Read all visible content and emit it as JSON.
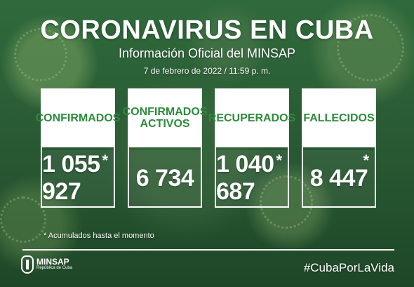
{
  "header": {
    "title": "CORONAVIRUS EN CUBA",
    "subtitle": "Información Oficial del MINSAP",
    "date": "7 de febrero de 2022 / 11:59 p. m."
  },
  "cards": [
    {
      "label": "CONFIRMADOS",
      "value": "1 055 927",
      "asterisk": "*"
    },
    {
      "label": "CONFIRMADOS ACTIVOS",
      "value": "6 734",
      "asterisk": ""
    },
    {
      "label": "RECUPERADOS",
      "value": "1 040 687",
      "asterisk": "*"
    },
    {
      "label": "FALLECIDOS",
      "value": "8 447",
      "asterisk": "*"
    }
  ],
  "footnote": "* Acumulados hasta el momento",
  "footer": {
    "logo_name": "MINSAP",
    "logo_subtitle": "República de Cuba",
    "hashtag": "#CubaPorLaVida"
  },
  "colors": {
    "background": "#2a5b34",
    "label_text": "#2d8b3c",
    "foreground": "#ffffff"
  },
  "icons": {
    "logo": "minsap-logo-icon",
    "virus_decoration": "virus-icon"
  }
}
